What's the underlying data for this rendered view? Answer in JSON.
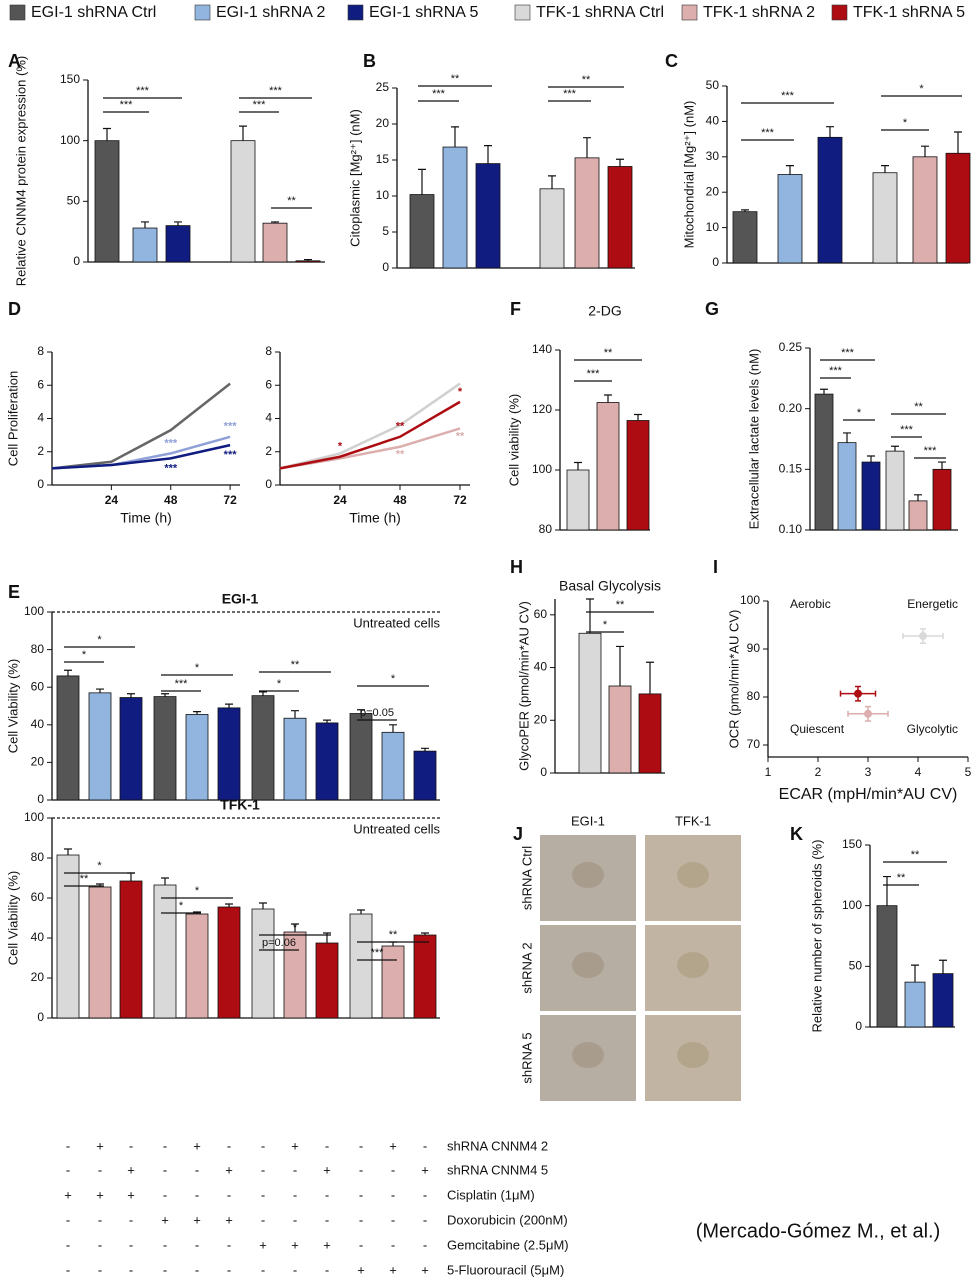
{
  "legend": [
    {
      "name": "EGI-1 shRNA Ctrl",
      "color": "#555555"
    },
    {
      "name": "EGI-1 shRNA 2",
      "color": "#92b5df"
    },
    {
      "name": "EGI-1 shRNA 5",
      "color": "#101c80"
    },
    {
      "name": "TFK-1 shRNA Ctrl",
      "color": "#d9d9d9"
    },
    {
      "name": "TFK-1 shRNA 2",
      "color": "#dcaeae"
    },
    {
      "name": "TFK-1 shRNA 5",
      "color": "#ad0d12"
    }
  ],
  "credit": "(Mercado-Gómez M., et al.)",
  "chart_data": [
    {
      "panel": "A",
      "type": "bar",
      "ylabel": "Relative CNNM4 protein expression (%)",
      "ylim": [
        0,
        150
      ],
      "yticks": [
        0,
        50,
        100,
        150
      ],
      "values": [
        100,
        28,
        30,
        100,
        32,
        1
      ],
      "errors": [
        10,
        5,
        3,
        12,
        1,
        1
      ],
      "colors": [
        "#555555",
        "#92b5df",
        "#101c80",
        "#d9d9d9",
        "#dcaeae",
        "#ad0d12"
      ],
      "significance": [
        "***",
        "***",
        "***",
        "***",
        "**"
      ]
    },
    {
      "panel": "B",
      "type": "bar",
      "ylabel": "Citoplasmic [Mg²⁺] (nM)",
      "ylim": [
        0,
        25
      ],
      "yticks": [
        0,
        5,
        10,
        15,
        20,
        25
      ],
      "values": [
        10.2,
        16.8,
        14.5,
        11,
        15.3,
        14.1
      ],
      "errors": [
        3.5,
        2.8,
        2.5,
        1.8,
        2.8,
        1
      ],
      "colors": [
        "#555555",
        "#92b5df",
        "#101c80",
        "#d9d9d9",
        "#dcaeae",
        "#ad0d12"
      ],
      "significance": [
        "***",
        "**",
        "***",
        "**"
      ]
    },
    {
      "panel": "C",
      "type": "bar",
      "ylabel": "Mitochondrial [Mg²⁺] (nM)",
      "ylim": [
        0,
        50
      ],
      "yticks": [
        0,
        10,
        20,
        30,
        40,
        50
      ],
      "values": [
        14.5,
        25,
        35.5,
        25.5,
        30,
        31
      ],
      "errors": [
        0.5,
        2.5,
        3,
        2,
        3,
        6
      ],
      "colors": [
        "#555555",
        "#92b5df",
        "#101c80",
        "#d9d9d9",
        "#dcaeae",
        "#ad0d12"
      ],
      "significance": [
        "***",
        "***",
        "*",
        "*"
      ]
    },
    {
      "panel": "D",
      "type": "line",
      "ylabel": "Cell Proliferation",
      "xlabel": "Time (h)",
      "xlim": [
        0,
        76
      ],
      "xticks": [
        24,
        48,
        72
      ],
      "ylim": [
        0,
        8
      ],
      "yticks": [
        0,
        2,
        4,
        6,
        8
      ],
      "x": [
        0,
        24,
        48,
        72
      ],
      "series": [
        {
          "color": "#666666",
          "values": [
            1,
            1.4,
            3.3,
            6.1
          ],
          "significance": [
            null,
            null,
            null,
            null
          ]
        },
        {
          "color": "#8f9fd8",
          "values": [
            1,
            1.2,
            1.9,
            2.9
          ],
          "significance": [
            null,
            null,
            "***",
            "***"
          ]
        },
        {
          "color": "#101c80",
          "values": [
            1,
            1.2,
            1.6,
            2.4
          ],
          "significance": [
            null,
            null,
            "***",
            "***"
          ]
        }
      ]
    },
    {
      "type": "line",
      "xlabel": "Time (h)",
      "xlim": [
        0,
        76
      ],
      "xticks": [
        24,
        48,
        72
      ],
      "ylim": [
        0,
        8
      ],
      "yticks": [
        0,
        2,
        4,
        6,
        8
      ],
      "x": [
        0,
        24,
        48,
        72
      ],
      "series": [
        {
          "color": "#d0d0d0",
          "values": [
            1,
            1.9,
            3.6,
            6.1
          ],
          "significance": [
            null,
            null,
            null,
            null
          ]
        },
        {
          "color": "#dcaeae",
          "values": [
            1,
            1.6,
            2.3,
            3.4
          ],
          "significance": [
            null,
            null,
            "**",
            "**"
          ]
        },
        {
          "color": "#ad0d12",
          "values": [
            1,
            1.7,
            2.9,
            5
          ],
          "significance": [
            null,
            "*",
            "**",
            "*"
          ]
        }
      ]
    },
    {
      "panel": "F",
      "type": "bar",
      "title": "2-DG",
      "ylabel": "Cell viability (%)",
      "ylim": [
        80,
        140
      ],
      "yticks": [
        80,
        100,
        120,
        140
      ],
      "values": [
        100,
        122.5,
        116.5
      ],
      "errors": [
        2.5,
        2.5,
        2
      ],
      "colors": [
        "#d9d9d9",
        "#dcaeae",
        "#ad0d12"
      ],
      "significance": [
        "***",
        "**"
      ]
    },
    {
      "panel": "G",
      "type": "bar",
      "ylabel": "Extracellular lactate levels (nM)",
      "ylim": [
        0.1,
        0.25
      ],
      "yticks": [
        {
          "value": 0.1,
          "label": "0.10"
        },
        0.15,
        {
          "value": 0.2,
          "label": "0.20"
        },
        0.25
      ],
      "values": [
        0.212,
        0.172,
        0.156,
        0.165,
        0.124,
        0.15
      ],
      "errors": [
        0.004,
        0.008,
        0.005,
        0.004,
        0.005,
        0.006
      ],
      "colors": [
        "#555555",
        "#92b5df",
        "#101c80",
        "#d9d9d9",
        "#dcaeae",
        "#ad0d12"
      ],
      "significance": [
        "***",
        "***",
        "*",
        "**",
        "***",
        "***"
      ]
    },
    {
      "panel": "E",
      "type": "bar",
      "title": "EGI-1",
      "ylabel": "Cell Viability (%)",
      "ylim": [
        0,
        100
      ],
      "yticks": [
        0,
        20,
        40,
        60,
        80,
        100
      ],
      "reference_line": {
        "value": 100,
        "label": "Untreated cells"
      },
      "values": [
        66,
        57,
        54.5,
        55,
        45.5,
        49,
        55.5,
        43.5,
        41,
        46,
        36,
        26
      ],
      "errors": [
        3,
        2,
        2,
        1.5,
        1.5,
        2,
        2,
        4,
        1.5,
        2,
        4,
        1.5
      ],
      "colors": [
        "#555555",
        "#92b5df",
        "#101c80",
        "#555555",
        "#92b5df",
        "#101c80",
        "#555555",
        "#92b5df",
        "#101c80",
        "#555555",
        "#92b5df",
        "#101c80"
      ],
      "significance": [
        "*",
        "*",
        "***",
        "*",
        "*",
        "**",
        "p=0.05",
        "*"
      ]
    },
    {
      "type": "bar",
      "title": "TFK-1",
      "ylabel": "Cell Viability (%)",
      "ylim": [
        0,
        100
      ],
      "yticks": [
        0,
        20,
        40,
        60,
        80,
        100
      ],
      "reference_line": {
        "value": 100,
        "label": "Untreated cells"
      },
      "values": [
        81.5,
        65.5,
        68.5,
        66.5,
        52,
        55.5,
        54.5,
        43,
        37.5,
        52,
        36,
        41.5
      ],
      "errors": [
        3,
        1.5,
        4,
        3.5,
        1,
        1.5,
        3,
        4,
        5,
        2,
        2,
        1
      ],
      "colors": [
        "#d9d9d9",
        "#dcaeae",
        "#ad0d12",
        "#d9d9d9",
        "#dcaeae",
        "#ad0d12",
        "#d9d9d9",
        "#dcaeae",
        "#ad0d12",
        "#d9d9d9",
        "#dcaeae",
        "#ad0d12"
      ],
      "significance": [
        "**",
        "*",
        "*",
        "*",
        "p=0.06",
        "*",
        "***",
        "**"
      ]
    },
    {
      "panel": "H",
      "type": "bar",
      "title": "Basal Glycolysis",
      "ylabel": "GlycoPER (pmol/min*AU CV)",
      "ylim": [
        0,
        66
      ],
      "yticks": [
        0,
        20,
        40,
        60
      ],
      "values": [
        53,
        33,
        30
      ],
      "errors": [
        13,
        15,
        12
      ],
      "colors": [
        "#d9d9d9",
        "#dcaeae",
        "#ad0d12"
      ],
      "significance": [
        "*",
        "**"
      ]
    },
    {
      "panel": "I",
      "type": "scatter",
      "xlabel": "ECAR (mpH/min*AU CV)",
      "ylabel": "OCR (pmol/min*AU CV)",
      "xlim": [
        1,
        5
      ],
      "xticks": [
        1,
        2,
        3,
        4,
        5
      ],
      "ylim": [
        67.5,
        100
      ],
      "yticks": [
        70,
        80,
        90,
        100
      ],
      "quadrant_labels": [
        "Aerobic",
        "Energetic",
        "Quiescent",
        "Glycolytic"
      ],
      "x": [
        4.1,
        3.0,
        2.8
      ],
      "y": [
        92.7,
        76.5,
        80.7
      ],
      "xerr": [
        0.4,
        0.4,
        0.35
      ],
      "yerr": [
        1.5,
        1.5,
        1.5
      ],
      "colors": [
        "#d9d9d9",
        "#dcaeae",
        "#ad0d12"
      ]
    },
    {
      "panel": "K",
      "type": "bar",
      "ylabel": "Relative number of spheroids (%)",
      "ylim": [
        0,
        150
      ],
      "yticks": [
        0,
        50,
        100,
        150
      ],
      "values": [
        100,
        37,
        44
      ],
      "errors": [
        24,
        14,
        11
      ],
      "colors": [
        "#555555",
        "#92b5df",
        "#101c80"
      ],
      "significance": [
        "**",
        "**"
      ]
    }
  ],
  "treatments": {
    "rows": [
      {
        "label": "shRNA CNNM4 2",
        "cells": [
          "-",
          "+",
          "-",
          "-",
          "+",
          "-",
          "-",
          "+",
          "-",
          "-",
          "+",
          "-"
        ]
      },
      {
        "label": "shRNA CNNM4 5",
        "cells": [
          "-",
          "-",
          "+",
          "-",
          "-",
          "+",
          "-",
          "-",
          "+",
          "-",
          "-",
          "+"
        ]
      },
      {
        "label": "Cisplatin (1μM)",
        "cells": [
          "+",
          "+",
          "+",
          "-",
          "-",
          "-",
          "-",
          "-",
          "-",
          "-",
          "-",
          "-"
        ]
      },
      {
        "label": "Doxorubicin (200nM)",
        "cells": [
          "-",
          "-",
          "-",
          "+",
          "+",
          "+",
          "-",
          "-",
          "-",
          "-",
          "-",
          "-"
        ]
      },
      {
        "label": "Gemcitabine (2.5μM)",
        "cells": [
          "-",
          "-",
          "-",
          "-",
          "-",
          "-",
          "+",
          "+",
          "+",
          "-",
          "-",
          "-"
        ]
      },
      {
        "label": "5-Fluorouracil (5μM)",
        "cells": [
          "-",
          "-",
          "-",
          "-",
          "-",
          "-",
          "-",
          "-",
          "-",
          "+",
          "+",
          "+"
        ]
      }
    ]
  },
  "image_grid": {
    "panel": "J",
    "columns": [
      "EGI-1",
      "TFK-1"
    ],
    "rows": [
      "shRNA Ctrl",
      "shRNA 2",
      "shRNA 5"
    ]
  }
}
